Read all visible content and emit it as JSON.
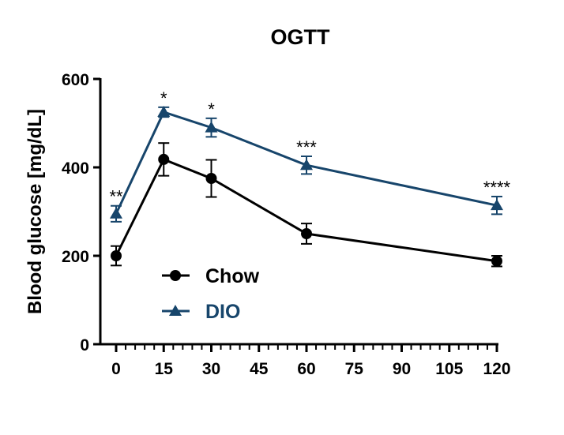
{
  "chart_data": {
    "type": "line",
    "title": "OGTT",
    "xlabel": "",
    "ylabel": "Blood glucose [mg/dL]",
    "xlim": [
      0,
      120
    ],
    "ylim": [
      0,
      600
    ],
    "x_ticks": [
      0,
      15,
      30,
      45,
      60,
      75,
      90,
      105,
      120
    ],
    "x_tick_labels": [
      "0",
      "15",
      "30",
      "45",
      "60",
      "75",
      "90",
      "105",
      "120"
    ],
    "y_ticks": [
      0,
      200,
      400,
      600
    ],
    "y_tick_labels": [
      "0",
      "200",
      "400",
      "600"
    ],
    "grid": false,
    "legend": "bottom-left",
    "x": [
      0,
      15,
      30,
      60,
      120
    ],
    "series": [
      {
        "name": "Chow",
        "marker": "circle",
        "color": "#000000",
        "values": [
          200,
          418,
          375,
          250,
          188
        ],
        "errors": [
          22,
          37,
          42,
          23,
          12
        ]
      },
      {
        "name": "DIO",
        "marker": "triangle",
        "color": "#17456b",
        "values": [
          295,
          525,
          490,
          405,
          314
        ],
        "errors": [
          18,
          11,
          21,
          20,
          20
        ]
      }
    ],
    "annotations": [
      {
        "x": 0,
        "text": "**"
      },
      {
        "x": 15,
        "text": "*"
      },
      {
        "x": 30,
        "text": "*"
      },
      {
        "x": 60,
        "text": "***"
      },
      {
        "x": 120,
        "text": "****"
      }
    ]
  }
}
